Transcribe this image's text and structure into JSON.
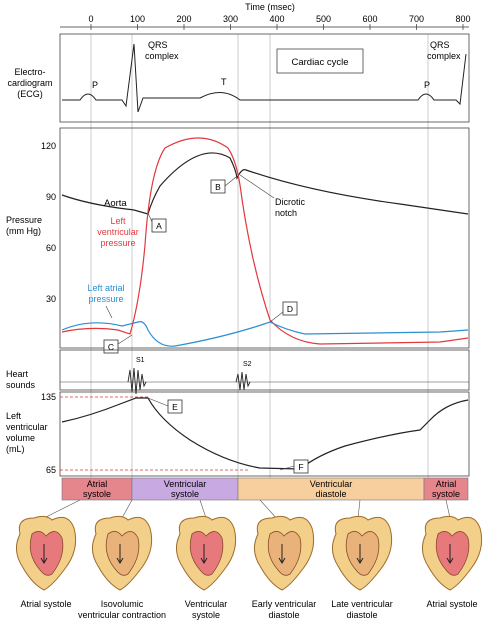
{
  "time_axis": {
    "title": "Time (msec)",
    "ticks": [
      {
        "value": 0,
        "label": "0"
      },
      {
        "value": 100,
        "label": "100"
      },
      {
        "value": 200,
        "label": "200"
      },
      {
        "value": 300,
        "label": "300"
      },
      {
        "value": 400,
        "label": "400"
      },
      {
        "value": 500,
        "label": "500"
      },
      {
        "value": 600,
        "label": "600"
      },
      {
        "value": 700,
        "label": "700"
      },
      {
        "value": 800,
        "label": "800"
      }
    ]
  },
  "ecg": {
    "label_line1": "Electro-",
    "label_line2": "cardiogram",
    "label_line3": "(ECG)",
    "p_wave": "P",
    "t_wave": "T",
    "p_wave_2": "P",
    "qrs_line1": "QRS",
    "qrs_line2": "complex",
    "qrs2_line1": "QRS",
    "qrs2_line2": "complex",
    "legend_box": "Cardiac cycle"
  },
  "pressure": {
    "label_line1": "Pressure",
    "label_line2": "(mm Hg)",
    "ticks": [
      "120",
      "90",
      "60",
      "30"
    ],
    "aorta_label": "Aorta",
    "lv_line1": "Left",
    "lv_line2": "ventricular",
    "lv_line3": "pressure",
    "la_line1": "Left atrial",
    "la_line2": "pressure",
    "dicrotic_line1": "Dicrotic",
    "dicrotic_line2": "notch",
    "colors": {
      "aorta": "#222222",
      "lv": "#e03a3e",
      "la": "#2b8fd0"
    }
  },
  "markers": [
    "A",
    "B",
    "C",
    "D",
    "E",
    "F"
  ],
  "heart_sounds": {
    "label_line1": "Heart",
    "label_line2": "sounds",
    "s1": "S1",
    "s2": "S2"
  },
  "volume": {
    "label_line1": "Left",
    "label_line2": "ventricular",
    "label_line3": "volume",
    "label_line4": "(mL)",
    "tick_high": "135",
    "tick_low": "65"
  },
  "phases": [
    {
      "line1": "Atrial",
      "line2": "systole",
      "color": "#e5858c"
    },
    {
      "line1": "Ventricular",
      "line2": "systole",
      "color": "#c9a9e1"
    },
    {
      "line1": "Ventricular",
      "line2": "diastole",
      "color": "#f7cf9e"
    },
    {
      "line1": "Atrial",
      "line2": "systole",
      "color": "#e5858c"
    }
  ],
  "hearts": [
    {
      "line1": "Atrial systole",
      "line2": ""
    },
    {
      "line1": "Isovolumic",
      "line2": "ventricular contraction"
    },
    {
      "line1": "Ventricular",
      "line2": "systole"
    },
    {
      "line1": "Early ventricular",
      "line2": "diastole"
    },
    {
      "line1": "Late ventricular",
      "line2": "diastole"
    },
    {
      "line1": "Atrial systole",
      "line2": ""
    }
  ]
}
